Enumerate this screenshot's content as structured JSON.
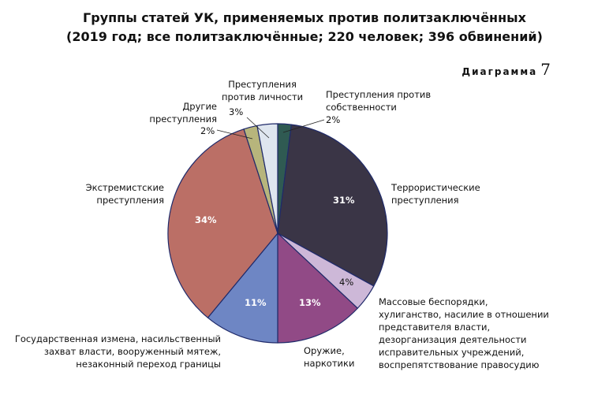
{
  "header": {
    "title_line1": "Группы статей УК, применяемых против политзаключённых",
    "title_line2": "(2019 год; все политзаключённые; 220 человек; 396 обвинений)",
    "diagram_label": "Диаграмма",
    "diagram_number": "7"
  },
  "chart_data": {
    "type": "pie",
    "title": "Группы статей УК, применяемых против политзаключённых",
    "subtitle": "(2019 год; все политзаключённые; 220 человек; 396 обвинений)",
    "start_angle_deg": 0,
    "direction": "clockwise",
    "slices": [
      {
        "label": "Преступления против собственности",
        "value": 2,
        "display": "2%",
        "color": "#2f5a52"
      },
      {
        "label": "Террористические преступления",
        "value": 31,
        "display": "31%",
        "color": "#3a3546"
      },
      {
        "label": "Массовые беспорядки, хулиганство, насилие в отношении представителя власти, дезорганизация деятельности исправительных учреждений, воспрепятствование правосудию",
        "value": 4,
        "display": "4%",
        "color": "#cdb8d8"
      },
      {
        "label": "Оружие, наркотики",
        "value": 13,
        "display": "13%",
        "color": "#914a86"
      },
      {
        "label": "Государственная измена, насильственный захват власти, вооруженный мятеж, незаконный переход границы",
        "value": 11,
        "display": "11%",
        "color": "#6e86c4"
      },
      {
        "label": "Экстремистские преступления",
        "value": 34,
        "display": "34%",
        "color": "#bb6f66"
      },
      {
        "label": "Другие преступления",
        "value": 2,
        "display": "2%",
        "color": "#b7b57c"
      },
      {
        "label": "Преступления против личности",
        "value": 3,
        "display": "3%",
        "color": "#dfe6ef"
      }
    ]
  },
  "labels": {
    "property_l1": "Преступления против",
    "property_l2": "собственности",
    "property_pct": "2%",
    "person_l1": "Преступления",
    "person_l2": "против личности",
    "person_pct": "3%",
    "other_l1": "Другие",
    "other_l2": "преступления",
    "other_pct": "2%",
    "terror_l1": "Террористические",
    "terror_l2": "преступления",
    "terror_pct": "31%",
    "extrem_l1": "Экстремистские",
    "extrem_l2": "преступления",
    "extrem_pct": "34%",
    "riot_pct": "4%",
    "riot_l1": "Массовые беспорядки,",
    "riot_l2": "хулиганство, насилие в отношении",
    "riot_l3": "представителя власти,",
    "riot_l4": "дезорганизация деятельности",
    "riot_l5": "исправительных учреждений,",
    "riot_l6": "воспрепятствование правосудию",
    "weapons_pct": "13%",
    "weapons_l1": "Оружие,",
    "weapons_l2": "наркотики",
    "treason_pct": "11%",
    "treason_l1": "Государственная измена, насильственный",
    "treason_l2": "захват власти, вооруженный мятеж,",
    "treason_l3": "незаконный переход границы"
  }
}
